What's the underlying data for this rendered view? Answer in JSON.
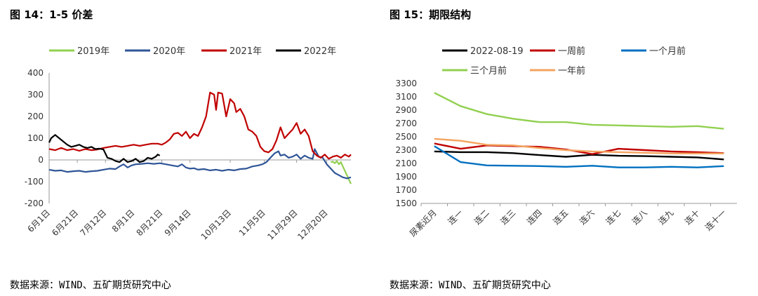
{
  "left": {
    "title": "图 14：1-5 价差",
    "source": "数据来源：WIND、五矿期货研究中心"
  },
  "right": {
    "title": "图 15：期限结构",
    "source": "数据来源：WIND、五矿期货研究中心"
  },
  "chart_data": [
    {
      "type": "line",
      "title": "",
      "xlabel": "",
      "ylabel": "",
      "ylim": [
        -200,
        400
      ],
      "yticks": [
        -200,
        -100,
        0,
        100,
        200,
        300,
        400
      ],
      "x_tick_labels": [
        "6月1日",
        "6月21日",
        "7月12日",
        "8月1日",
        "8月21日",
        "9月14日",
        "10月13日",
        "11月5日",
        "11月29日",
        "12月20日"
      ],
      "x_tick_positions": [
        0,
        14,
        28,
        42,
        56,
        70,
        90,
        107,
        123,
        138
      ],
      "x_range": [
        0,
        150
      ],
      "grid": false,
      "legend_position": "top",
      "series": [
        {
          "name": "2019年",
          "color": "#92d050",
          "points": [
            [
              140,
              -10
            ],
            [
              141,
              -8
            ],
            [
              142,
              -15
            ],
            [
              143,
              -5
            ],
            [
              144,
              -20
            ],
            [
              145,
              -10
            ],
            [
              146,
              -30
            ],
            [
              147,
              -50
            ],
            [
              148,
              -70
            ],
            [
              149,
              -90
            ],
            [
              150,
              -110
            ]
          ]
        },
        {
          "name": "2020年",
          "color": "#2f5597",
          "points": [
            [
              0,
              -45
            ],
            [
              3,
              -50
            ],
            [
              6,
              -48
            ],
            [
              9,
              -55
            ],
            [
              12,
              -52
            ],
            [
              15,
              -50
            ],
            [
              18,
              -55
            ],
            [
              21,
              -52
            ],
            [
              24,
              -50
            ],
            [
              27,
              -45
            ],
            [
              30,
              -40
            ],
            [
              33,
              -42
            ],
            [
              35,
              -30
            ],
            [
              37,
              -20
            ],
            [
              39,
              -35
            ],
            [
              41,
              -25
            ],
            [
              43,
              -20
            ],
            [
              46,
              -18
            ],
            [
              49,
              -15
            ],
            [
              52,
              -18
            ],
            [
              55,
              -15
            ],
            [
              58,
              -20
            ],
            [
              61,
              -25
            ],
            [
              64,
              -30
            ],
            [
              66,
              -20
            ],
            [
              68,
              -35
            ],
            [
              70,
              -40
            ],
            [
              72,
              -38
            ],
            [
              74,
              -45
            ],
            [
              77,
              -42
            ],
            [
              80,
              -48
            ],
            [
              83,
              -45
            ],
            [
              86,
              -50
            ],
            [
              89,
              -45
            ],
            [
              92,
              -48
            ],
            [
              95,
              -42
            ],
            [
              98,
              -40
            ],
            [
              101,
              -30
            ],
            [
              104,
              -25
            ],
            [
              106,
              -20
            ],
            [
              108,
              -10
            ],
            [
              110,
              10
            ],
            [
              112,
              30
            ],
            [
              114,
              40
            ],
            [
              115,
              20
            ],
            [
              117,
              25
            ],
            [
              119,
              10
            ],
            [
              121,
              15
            ],
            [
              123,
              25
            ],
            [
              125,
              5
            ],
            [
              127,
              20
            ],
            [
              129,
              10
            ],
            [
              131,
              5
            ],
            [
              132,
              50
            ],
            [
              134,
              15
            ],
            [
              136,
              10
            ],
            [
              138,
              -20
            ],
            [
              140,
              -40
            ],
            [
              142,
              -60
            ],
            [
              144,
              -70
            ],
            [
              146,
              -80
            ],
            [
              148,
              -85
            ],
            [
              150,
              -80
            ]
          ]
        },
        {
          "name": "2021年",
          "color": "#c00000",
          "points": [
            [
              0,
              50
            ],
            [
              3,
              45
            ],
            [
              6,
              55
            ],
            [
              9,
              45
            ],
            [
              12,
              50
            ],
            [
              15,
              42
            ],
            [
              18,
              50
            ],
            [
              21,
              45
            ],
            [
              24,
              48
            ],
            [
              27,
              55
            ],
            [
              30,
              60
            ],
            [
              33,
              65
            ],
            [
              36,
              60
            ],
            [
              39,
              65
            ],
            [
              42,
              70
            ],
            [
              45,
              65
            ],
            [
              48,
              70
            ],
            [
              51,
              75
            ],
            [
              54,
              75
            ],
            [
              56,
              70
            ],
            [
              58,
              80
            ],
            [
              60,
              95
            ],
            [
              62,
              120
            ],
            [
              64,
              125
            ],
            [
              66,
              110
            ],
            [
              68,
              130
            ],
            [
              70,
              100
            ],
            [
              72,
              120
            ],
            [
              74,
              110
            ],
            [
              76,
              150
            ],
            [
              78,
              200
            ],
            [
              80,
              310
            ],
            [
              82,
              300
            ],
            [
              83,
              230
            ],
            [
              84,
              310
            ],
            [
              86,
              305
            ],
            [
              88,
              200
            ],
            [
              90,
              280
            ],
            [
              92,
              260
            ],
            [
              93,
              220
            ],
            [
              95,
              235
            ],
            [
              97,
              200
            ],
            [
              99,
              140
            ],
            [
              101,
              130
            ],
            [
              103,
              110
            ],
            [
              105,
              60
            ],
            [
              107,
              40
            ],
            [
              109,
              35
            ],
            [
              111,
              50
            ],
            [
              113,
              90
            ],
            [
              115,
              150
            ],
            [
              117,
              100
            ],
            [
              119,
              120
            ],
            [
              121,
              140
            ],
            [
              123,
              170
            ],
            [
              125,
              120
            ],
            [
              127,
              140
            ],
            [
              129,
              110
            ],
            [
              131,
              40
            ],
            [
              133,
              20
            ],
            [
              135,
              10
            ],
            [
              137,
              25
            ],
            [
              139,
              5
            ],
            [
              141,
              15
            ],
            [
              143,
              20
            ],
            [
              145,
              10
            ],
            [
              147,
              25
            ],
            [
              149,
              15
            ],
            [
              150,
              25
            ]
          ]
        },
        {
          "name": "2022年",
          "color": "#000000",
          "points": [
            [
              0,
              80
            ],
            [
              1,
              100
            ],
            [
              3,
              115
            ],
            [
              5,
              100
            ],
            [
              7,
              85
            ],
            [
              9,
              70
            ],
            [
              11,
              60
            ],
            [
              13,
              65
            ],
            [
              15,
              70
            ],
            [
              17,
              60
            ],
            [
              19,
              55
            ],
            [
              21,
              60
            ],
            [
              23,
              50
            ],
            [
              25,
              52
            ],
            [
              27,
              48
            ],
            [
              29,
              10
            ],
            [
              31,
              5
            ],
            [
              33,
              -5
            ],
            [
              35,
              -10
            ],
            [
              37,
              5
            ],
            [
              39,
              -10
            ],
            [
              41,
              -5
            ],
            [
              43,
              5
            ],
            [
              45,
              -10
            ],
            [
              47,
              -5
            ],
            [
              49,
              10
            ],
            [
              51,
              5
            ],
            [
              53,
              15
            ],
            [
              54,
              25
            ],
            [
              55,
              20
            ]
          ]
        }
      ]
    },
    {
      "type": "line",
      "title": "",
      "xlabel": "",
      "ylabel": "",
      "ylim": [
        1500,
        3300
      ],
      "yticks": [
        1500,
        1700,
        1900,
        2100,
        2300,
        2500,
        2700,
        2900,
        3100,
        3300
      ],
      "categories": [
        "尿素近月",
        "连一",
        "连二",
        "连三",
        "连四",
        "连五",
        "连六",
        "连七",
        "连八",
        "连九",
        "连十",
        "连十一"
      ],
      "grid": false,
      "legend_position": "top",
      "series": [
        {
          "name": "2022-08-19",
          "color": "#000000",
          "values": [
            2280,
            2270,
            2270,
            2255,
            2225,
            2200,
            2230,
            2215,
            2210,
            2200,
            2190,
            2160
          ]
        },
        {
          "name": "一周前",
          "color": "#c00000",
          "values": [
            2400,
            2320,
            2370,
            2360,
            2350,
            2310,
            2240,
            2320,
            2300,
            2280,
            2270,
            2255
          ]
        },
        {
          "name": "一个月前",
          "color": "#0070c0",
          "values": [
            2360,
            2120,
            2070,
            2065,
            2060,
            2050,
            2065,
            2040,
            2040,
            2050,
            2040,
            2060
          ]
        },
        {
          "name": "三个月前",
          "color": "#92d050",
          "values": [
            3160,
            2960,
            2840,
            2770,
            2720,
            2720,
            2680,
            2670,
            2660,
            2650,
            2660,
            2620
          ]
        },
        {
          "name": "一年前",
          "color": "#f4a460",
          "values": [
            2470,
            2440,
            2380,
            2370,
            2330,
            2300,
            2280,
            2270,
            2260,
            2250,
            2250,
            2250
          ]
        }
      ]
    }
  ]
}
